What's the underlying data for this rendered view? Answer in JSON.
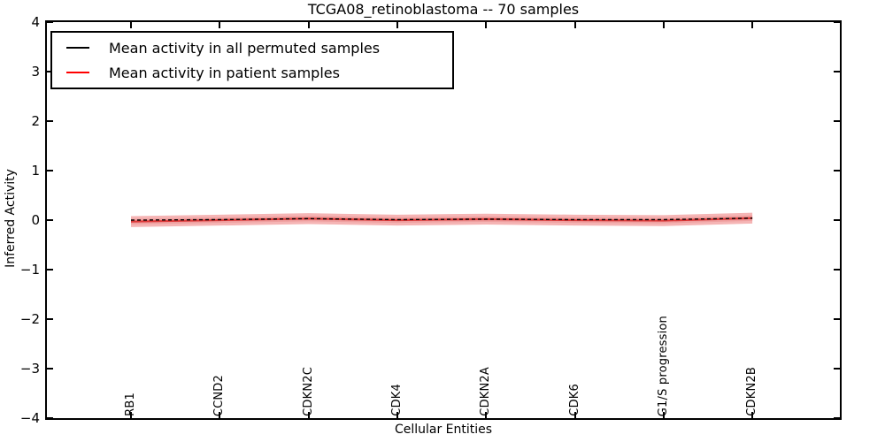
{
  "figure": {
    "background": "#ffffff"
  },
  "chart_data": {
    "type": "line",
    "title": "TCGA08_retinoblastoma -- 70 samples",
    "xlabel": "Cellular Entities",
    "ylabel": "Inferred Activity",
    "ylim": [
      -4,
      4
    ],
    "yticks": [
      4,
      3,
      2,
      1,
      0,
      -1,
      -2,
      -3,
      -4
    ],
    "ytick_labels": [
      "4",
      "3",
      "2",
      "1",
      "0",
      "−1",
      "−2",
      "−3",
      "−4"
    ],
    "categories": [
      "RB1",
      "CCND2",
      "CDKN2C",
      "CDK4",
      "CDKN2A",
      "CDK6",
      "G1/S progression",
      "CDKN2B"
    ],
    "series": [
      {
        "name": "Mean activity in all permuted samples",
        "color": "#000000",
        "line_color": "#000000",
        "style": "dashed",
        "values": [
          0.0,
          0.01,
          0.03,
          0.01,
          0.02,
          0.01,
          0.01,
          0.04
        ]
      },
      {
        "name": "Mean activity in patient samples",
        "color": "#ff0000",
        "line_color": "#dd3a3a",
        "style": "solid",
        "values": [
          -0.03,
          0.0,
          0.03,
          0.0,
          0.02,
          0.0,
          -0.01,
          0.04
        ]
      }
    ],
    "band": {
      "centered_on": "Mean activity in patient samples",
      "outer_halfwidth": 0.11,
      "inner_halfwidth": 0.055,
      "outer_color": "#f5b5b5",
      "inner_color": "#efa0a0"
    },
    "legend_position": "upper left",
    "grid": false
  }
}
